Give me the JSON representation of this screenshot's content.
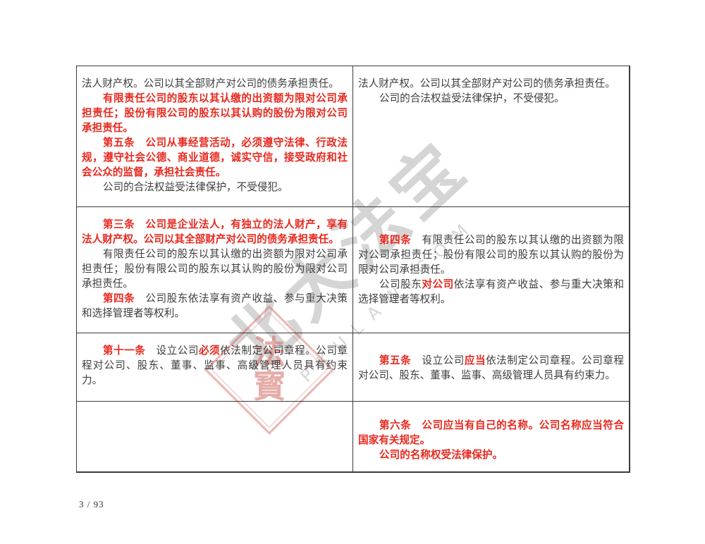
{
  "colors": {
    "amended_red": "#e8281e",
    "body_black": "#3d3d3d",
    "table_border": "#3a3a3a",
    "watermark_gray": "#cbcbcb",
    "stamp_pink": "#d56e66"
  },
  "watermark": {
    "cn_text": "北大法宝",
    "latin_text": "PKULAW.COM",
    "stamp_text": "法寳"
  },
  "footer": {
    "page_indicator": "3 / 93"
  },
  "table": {
    "columns": 2,
    "rows": [
      {
        "cells": [
          {
            "paragraphs": [
              {
                "indent": false,
                "segments": [
                  {
                    "s": "blk",
                    "t": "法人财产权。公司以其全部财产对公司的债务承担责任。"
                  }
                ]
              },
              {
                "indent": true,
                "segments": [
                  {
                    "s": "red",
                    "t": "有限责任公司的股东以其认缴的出资额为限对公司承担责任；股份有限公司的股东以其认购的股份为限对公司承担责任。"
                  }
                ]
              },
              {
                "indent": true,
                "segments": [
                  {
                    "s": "red",
                    "t": "第五条　公司从事经营活动，必须遵守法律、行政法规，遵守社会公德、商业道德，诚实守信，接受政府和社会公众的监督，承担社会责任。"
                  }
                ]
              },
              {
                "indent": true,
                "segments": [
                  {
                    "s": "blk",
                    "t": "公司的合法权益受法律保护，不受侵犯。"
                  }
                ]
              }
            ]
          },
          {
            "paragraphs": [
              {
                "indent": false,
                "segments": [
                  {
                    "s": "blk",
                    "t": "法人财产权。公司以其全部财产对公司的债务承担责任。"
                  }
                ]
              },
              {
                "indent": true,
                "segments": [
                  {
                    "s": "blk",
                    "t": "公司的合法权益受法律保护，不受侵犯。"
                  }
                ]
              }
            ]
          }
        ]
      },
      {
        "cells": [
          {
            "paragraphs": [
              {
                "indent": true,
                "segments": [
                  {
                    "s": "red",
                    "t": "第三条　公司是企业法人，有独立的法人财产，享有法人财产权。公司以其全部财产对公司的债务承担责任。"
                  }
                ]
              },
              {
                "indent": true,
                "segments": [
                  {
                    "s": "blk",
                    "t": "有限责任公司的股东以其认缴的出资额为限对公司承担责任；股份有限公司的股东以其认购的股份为限对公司承担责任。"
                  }
                ]
              },
              {
                "indent": true,
                "segments": [
                  {
                    "s": "red",
                    "t": "第四条"
                  },
                  {
                    "s": "blk",
                    "t": "　公司股东依法享有资产收益、参与重大决策和选择管理者等权利。"
                  }
                ]
              }
            ]
          },
          {
            "paragraphs": [
              {
                "indent": true,
                "segments": [
                  {
                    "s": "red",
                    "t": "第四条"
                  },
                  {
                    "s": "blk",
                    "t": "　有限责任公司的股东以其认缴的出资额为限对公司承担责任；股份有限公司的股东以其认购的股份为限对公司承担责任。"
                  }
                ]
              },
              {
                "indent": true,
                "segments": [
                  {
                    "s": "blk",
                    "t": "公司股东"
                  },
                  {
                    "s": "red",
                    "t": "对公司"
                  },
                  {
                    "s": "blk",
                    "t": "依法享有资产收益、参与重大决策和选择管理者等权利。"
                  }
                ]
              }
            ]
          }
        ]
      },
      {
        "cells": [
          {
            "paragraphs": [
              {
                "indent": true,
                "segments": [
                  {
                    "s": "red",
                    "t": "第十一条"
                  },
                  {
                    "s": "blk",
                    "t": "　设立公司"
                  },
                  {
                    "s": "red",
                    "t": "必须"
                  },
                  {
                    "s": "blk",
                    "t": "依法制定公司章程。公司章程对公司、股东、董事、监事、高级管理人员具有约束力。"
                  }
                ]
              }
            ]
          },
          {
            "paragraphs": [
              {
                "indent": true,
                "segments": [
                  {
                    "s": "red",
                    "t": "第五条"
                  },
                  {
                    "s": "blk",
                    "t": "　设立公司"
                  },
                  {
                    "s": "red",
                    "t": "应当"
                  },
                  {
                    "s": "blk",
                    "t": "依法制定公司章程。公司章程对公司、股东、董事、监事、高级管理人员具有约束力。"
                  }
                ]
              }
            ]
          }
        ]
      },
      {
        "cells": [
          {
            "paragraphs": []
          },
          {
            "paragraphs": [
              {
                "indent": true,
                "segments": [
                  {
                    "s": "red",
                    "t": "第六条　公司应当有自己的名称。公司名称应当符合国家有关规定。"
                  }
                ]
              },
              {
                "indent": true,
                "segments": [
                  {
                    "s": "red",
                    "t": "公司的名称权受法律保护。"
                  }
                ]
              }
            ]
          }
        ]
      }
    ]
  }
}
